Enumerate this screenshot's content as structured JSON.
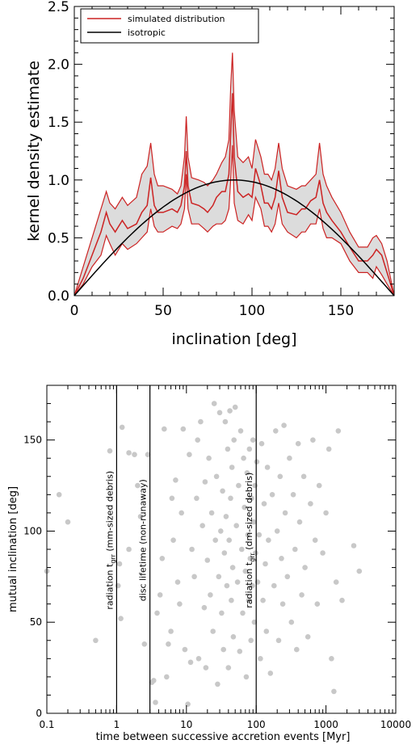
{
  "colors": {
    "simulated": "#cc2222",
    "band": "#dcdcdc",
    "isotropic": "#000000",
    "scatter": "#c8c8c8"
  },
  "chart_data": [
    {
      "type": "line",
      "xlabel": "inclination [deg]",
      "ylabel": "kernel density estimate",
      "xlim": [
        0,
        180
      ],
      "ylim": [
        0,
        2.5
      ],
      "xticks": [
        "0",
        "50",
        "100",
        "150"
      ],
      "xtick_values": [
        0,
        50,
        100,
        150
      ],
      "yticks": [
        "0.0",
        "0.5",
        "1.0",
        "1.5",
        "2.0",
        "2.5"
      ],
      "ytick_values": [
        0,
        0.5,
        1.0,
        1.5,
        2.0,
        2.5
      ],
      "legend": {
        "location": "top-left",
        "entries": [
          "simulated distribution",
          "isotropic"
        ]
      },
      "series": [
        {
          "name": "simulated distribution",
          "x": [
            0,
            5,
            10,
            15,
            18,
            20,
            23,
            27,
            30,
            35,
            38,
            41,
            43,
            45,
            47,
            50,
            55,
            58,
            60,
            62,
            63,
            64,
            66,
            70,
            73,
            75,
            78,
            80,
            83,
            85,
            87,
            88,
            89,
            90,
            92,
            95,
            98,
            100,
            102,
            105,
            107,
            109,
            111,
            113,
            115,
            117,
            120,
            125,
            128,
            130,
            133,
            136,
            138,
            140,
            142,
            145,
            150,
            155,
            160,
            165,
            168,
            170,
            173,
            176,
            180
          ],
          "lower": [
            0,
            0.1,
            0.25,
            0.35,
            0.52,
            0.45,
            0.35,
            0.45,
            0.4,
            0.45,
            0.5,
            0.55,
            0.75,
            0.6,
            0.55,
            0.55,
            0.6,
            0.58,
            0.62,
            0.75,
            1.05,
            0.75,
            0.62,
            0.62,
            0.58,
            0.55,
            0.6,
            0.62,
            0.62,
            0.65,
            0.75,
            1.0,
            1.3,
            0.8,
            0.65,
            0.62,
            0.7,
            0.65,
            0.85,
            0.75,
            0.6,
            0.6,
            0.55,
            0.62,
            0.8,
            0.62,
            0.55,
            0.5,
            0.55,
            0.55,
            0.62,
            0.62,
            0.75,
            0.58,
            0.5,
            0.5,
            0.45,
            0.3,
            0.2,
            0.2,
            0.15,
            0.25,
            0.18,
            0.1,
            0
          ],
          "mid": [
            0,
            0.15,
            0.35,
            0.55,
            0.72,
            0.62,
            0.55,
            0.65,
            0.58,
            0.62,
            0.72,
            0.78,
            1.02,
            0.78,
            0.72,
            0.72,
            0.75,
            0.72,
            0.78,
            0.95,
            1.25,
            0.95,
            0.8,
            0.78,
            0.75,
            0.72,
            0.78,
            0.85,
            0.9,
            0.9,
            1.05,
            1.4,
            1.75,
            1.2,
            0.9,
            0.85,
            0.88,
            0.85,
            1.1,
            0.95,
            0.8,
            0.8,
            0.75,
            0.85,
            1.08,
            0.85,
            0.72,
            0.7,
            0.75,
            0.75,
            0.82,
            0.85,
            1.0,
            0.8,
            0.72,
            0.65,
            0.55,
            0.42,
            0.3,
            0.3,
            0.35,
            0.4,
            0.35,
            0.2,
            0
          ],
          "upper": [
            0,
            0.25,
            0.5,
            0.75,
            0.9,
            0.8,
            0.75,
            0.85,
            0.78,
            0.85,
            1.05,
            1.12,
            1.32,
            1.05,
            0.95,
            0.95,
            0.92,
            0.88,
            0.95,
            1.2,
            1.55,
            1.2,
            1.02,
            1.0,
            0.98,
            0.95,
            1.0,
            1.05,
            1.15,
            1.2,
            1.35,
            1.8,
            2.1,
            1.6,
            1.2,
            1.15,
            1.2,
            1.1,
            1.35,
            1.2,
            1.05,
            1.05,
            1.0,
            1.1,
            1.32,
            1.1,
            0.95,
            0.92,
            0.95,
            0.95,
            1.0,
            1.05,
            1.32,
            1.05,
            0.95,
            0.85,
            0.72,
            0.55,
            0.42,
            0.42,
            0.5,
            0.52,
            0.45,
            0.3,
            0
          ]
        },
        {
          "name": "isotropic",
          "function": "sin",
          "x": [
            0,
            10,
            20,
            30,
            40,
            50,
            60,
            70,
            80,
            90,
            100,
            110,
            120,
            130,
            140,
            150,
            160,
            170,
            180
          ],
          "y": [
            0,
            0.174,
            0.342,
            0.5,
            0.643,
            0.766,
            0.866,
            0.94,
            0.985,
            1.0,
            0.985,
            0.94,
            0.866,
            0.766,
            0.643,
            0.5,
            0.342,
            0.174,
            0
          ]
        }
      ]
    },
    {
      "type": "scatter",
      "xlabel": "time between successive accretion events [Myr]",
      "ylabel": "mutual inclination [deg]",
      "xscale": "log",
      "xlim": [
        0.1,
        10000
      ],
      "ylim": [
        0,
        180
      ],
      "xticks": [
        "0.1",
        "1",
        "10",
        "100",
        "1000",
        "10000"
      ],
      "xtick_values": [
        0.1,
        1,
        10,
        100,
        1000,
        10000
      ],
      "yticks": [
        "0",
        "50",
        "100",
        "150"
      ],
      "ytick_values": [
        0,
        50,
        100,
        150
      ],
      "vlines": [
        {
          "x": 1,
          "label_main": "radiation t",
          "label_sub": "grr",
          "label_tail": " (mm-sized debris)"
        },
        {
          "x": 3,
          "label_main": "disc lifetime (non-runaway)",
          "label_sub": "",
          "label_tail": ""
        },
        {
          "x": 100,
          "label_main": "radiation t",
          "label_sub": "grr",
          "label_tail": " (dm-sized debris)"
        }
      ],
      "points": [
        [
          0.1,
          78
        ],
        [
          0.15,
          120
        ],
        [
          0.2,
          105
        ],
        [
          0.5,
          40
        ],
        [
          0.8,
          144
        ],
        [
          1.05,
          70
        ],
        [
          1.1,
          82
        ],
        [
          1.15,
          52
        ],
        [
          1.2,
          157
        ],
        [
          1.5,
          143
        ],
        [
          1.8,
          142
        ],
        [
          2.2,
          108
        ],
        [
          2.5,
          38
        ],
        [
          2.8,
          142
        ],
        [
          3.2,
          17
        ],
        [
          3.4,
          18
        ],
        [
          3.6,
          6
        ],
        [
          3.8,
          55
        ],
        [
          4.2,
          65
        ],
        [
          4.5,
          85
        ],
        [
          4.8,
          156
        ],
        [
          5.2,
          20
        ],
        [
          5.5,
          38
        ],
        [
          6,
          45
        ],
        [
          6.5,
          95
        ],
        [
          7,
          128
        ],
        [
          7.5,
          72
        ],
        [
          8,
          60
        ],
        [
          8.5,
          110
        ],
        [
          9,
          156
        ],
        [
          9.5,
          35
        ],
        [
          10.5,
          5
        ],
        [
          11,
          142
        ],
        [
          12,
          90
        ],
        [
          13,
          75
        ],
        [
          14,
          118
        ],
        [
          15,
          30
        ],
        [
          16,
          160
        ],
        [
          17,
          103
        ],
        [
          18,
          58
        ],
        [
          19,
          25
        ],
        [
          20,
          84
        ],
        [
          21,
          140
        ],
        [
          22,
          65
        ],
        [
          23,
          110
        ],
        [
          24,
          45
        ],
        [
          25,
          170
        ],
        [
          26,
          95
        ],
        [
          27,
          130
        ],
        [
          28,
          16
        ],
        [
          29,
          75
        ],
        [
          30,
          165
        ],
        [
          31,
          100
        ],
        [
          32,
          55
        ],
        [
          33,
          122
        ],
        [
          34,
          35
        ],
        [
          35,
          88
        ],
        [
          36,
          160
        ],
        [
          37,
          108
        ],
        [
          38,
          70
        ],
        [
          39,
          145
        ],
        [
          40,
          25
        ],
        [
          41,
          95
        ],
        [
          42,
          166
        ],
        [
          43,
          118
        ],
        [
          44,
          62
        ],
        [
          45,
          135
        ],
        [
          46,
          80
        ],
        [
          47,
          42
        ],
        [
          48,
          150
        ],
        [
          50,
          168
        ],
        [
          52,
          103
        ],
        [
          54,
          72
        ],
        [
          56,
          125
        ],
        [
          58,
          34
        ],
        [
          60,
          155
        ],
        [
          62,
          90
        ],
        [
          64,
          55
        ],
        [
          66,
          140
        ],
        [
          68,
          113
        ],
        [
          70,
          78
        ],
        [
          72,
          20
        ],
        [
          74,
          132
        ],
        [
          76,
          98
        ],
        [
          78,
          62
        ],
        [
          80,
          145
        ],
        [
          82,
          85
        ],
        [
          84,
          40
        ],
        [
          86,
          118
        ],
        [
          88,
          70
        ],
        [
          90,
          150
        ],
        [
          92,
          105
        ],
        [
          94,
          50
        ],
        [
          96,
          125
        ],
        [
          98,
          88
        ],
        [
          102,
          138
        ],
        [
          105,
          72
        ],
        [
          110,
          98
        ],
        [
          115,
          30
        ],
        [
          120,
          148
        ],
        [
          125,
          62
        ],
        [
          130,
          115
        ],
        [
          135,
          82
        ],
        [
          140,
          45
        ],
        [
          145,
          135
        ],
        [
          150,
          95
        ],
        [
          160,
          22
        ],
        [
          170,
          120
        ],
        [
          180,
          70
        ],
        [
          190,
          155
        ],
        [
          200,
          100
        ],
        [
          210,
          40
        ],
        [
          220,
          130
        ],
        [
          230,
          85
        ],
        [
          240,
          60
        ],
        [
          250,
          158
        ],
        [
          260,
          110
        ],
        [
          280,
          75
        ],
        [
          300,
          140
        ],
        [
          320,
          50
        ],
        [
          340,
          120
        ],
        [
          360,
          90
        ],
        [
          380,
          35
        ],
        [
          400,
          148
        ],
        [
          420,
          105
        ],
        [
          450,
          65
        ],
        [
          480,
          130
        ],
        [
          500,
          80
        ],
        [
          550,
          42
        ],
        [
          600,
          115
        ],
        [
          650,
          150
        ],
        [
          700,
          95
        ],
        [
          750,
          60
        ],
        [
          800,
          125
        ],
        [
          900,
          88
        ],
        [
          1000,
          110
        ],
        [
          1100,
          145
        ],
        [
          1200,
          30
        ],
        [
          1300,
          12
        ],
        [
          1400,
          72
        ],
        [
          1500,
          155
        ],
        [
          1700,
          62
        ],
        [
          2500,
          92
        ],
        [
          3000,
          78
        ],
        [
          1.5,
          90
        ],
        [
          2.0,
          125
        ],
        [
          6.2,
          118
        ],
        [
          11.5,
          28
        ],
        [
          14.5,
          150
        ],
        [
          18.5,
          127
        ]
      ]
    }
  ]
}
